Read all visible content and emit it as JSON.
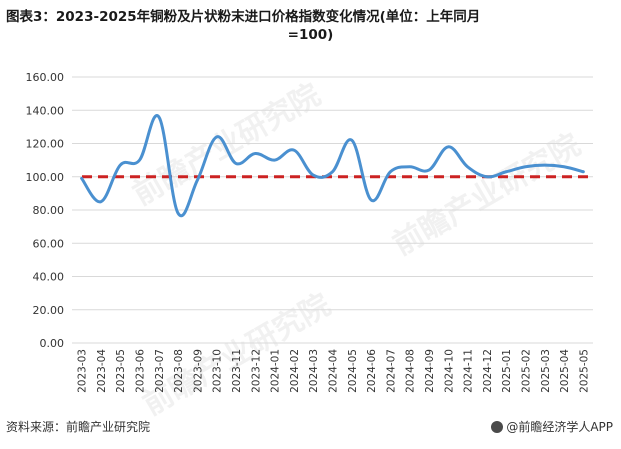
{
  "title_line1": "图表3：2023-2025年铜粉及片状粉末进口价格指数变化情况(单位：上年同月",
  "title_line2": "=100)",
  "source": "资料来源：前瞻产业研究院",
  "brand": "@前瞻经济学人APP",
  "watermark": "前瞻产业研究院",
  "colors": {
    "line": "#4a90d0",
    "reference": "#cc2222",
    "grid": "#d9d9d9"
  },
  "chart_data": {
    "type": "line",
    "categories": [
      "2023-03",
      "2023-04",
      "2023-05",
      "2023-06",
      "2023-07",
      "2023-08",
      "2023-09",
      "2023-10",
      "2023-11",
      "2023-12",
      "2024-01",
      "2024-02",
      "2024-03",
      "2024-04",
      "2024-05",
      "2024-06",
      "2024-07",
      "2024-08",
      "2024-09",
      "2024-10",
      "2024-11",
      "2024-12",
      "2025-01",
      "2025-02",
      "2025-03",
      "2025-04",
      "2025-05"
    ],
    "series": [
      {
        "values": [
          99,
          85,
          107,
          110,
          136,
          78,
          98,
          124,
          108,
          114,
          110,
          116,
          101,
          103,
          122,
          86,
          103,
          106,
          104,
          118,
          106,
          100,
          103,
          106,
          107,
          106,
          103
        ]
      }
    ],
    "reference_line": 100,
    "yticks": [
      "0.00",
      "20.00",
      "40.00",
      "60.00",
      "80.00",
      "100.00",
      "120.00",
      "140.00",
      "160.00"
    ],
    "ylim": [
      0,
      160
    ],
    "grid": true
  }
}
